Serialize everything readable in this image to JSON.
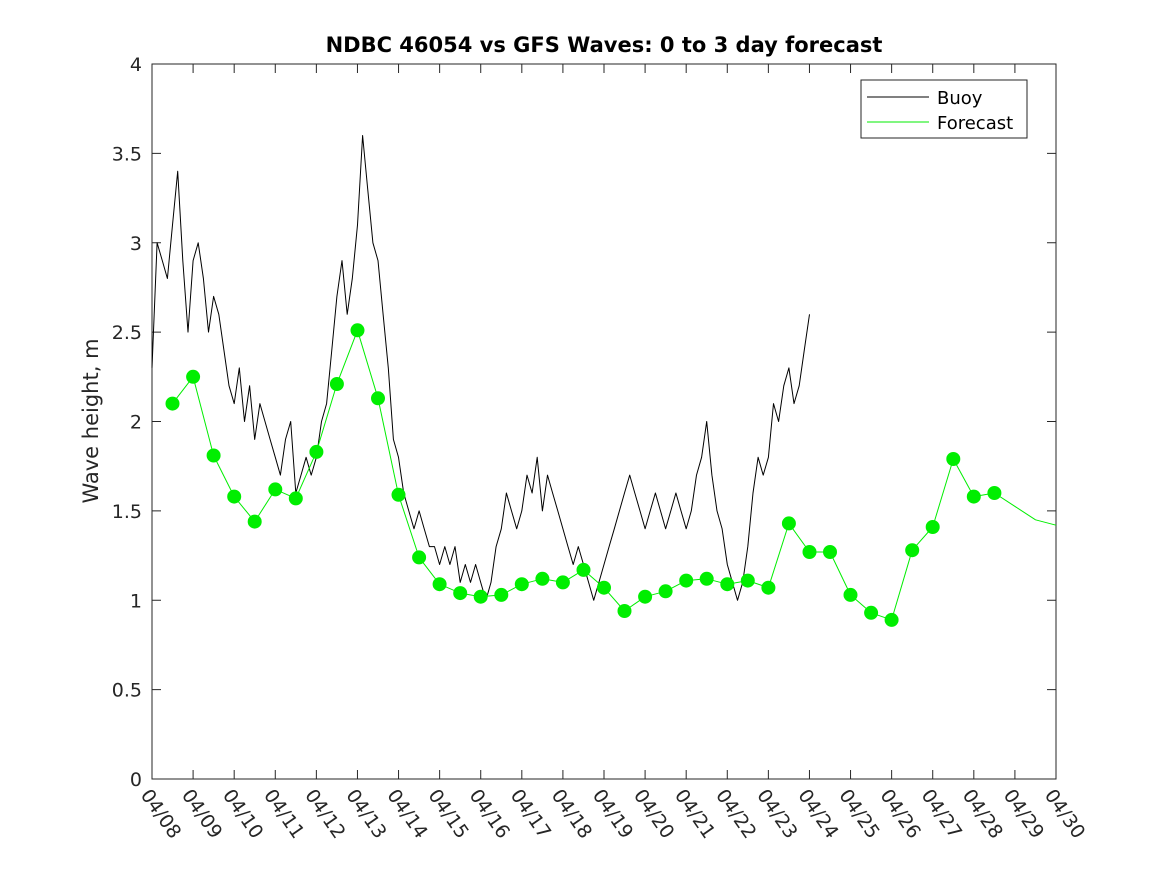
{
  "chart_data": {
    "type": "line",
    "title": "NDBC 46054 vs GFS Waves: 0 to 3 day forecast",
    "xlabel": "",
    "ylabel": "Wave height, m",
    "ylim": [
      0,
      4
    ],
    "yticks": [
      "0",
      "0.5",
      "1",
      "1.5",
      "2",
      "2.5",
      "3",
      "3.5",
      "4"
    ],
    "xlim": [
      "04/08",
      "04/30"
    ],
    "xticks": [
      "04/08",
      "04/09",
      "04/10",
      "04/11",
      "04/12",
      "04/13",
      "04/14",
      "04/15",
      "04/16",
      "04/17",
      "04/18",
      "04/19",
      "04/20",
      "04/21",
      "04/22",
      "04/23",
      "04/24",
      "04/25",
      "04/26",
      "04/27",
      "04/28",
      "04/29",
      "04/30"
    ],
    "legend_position": "top-right",
    "colors": {
      "buoy": "#000000",
      "forecast": "#00ee00",
      "axes": "#262626"
    },
    "series": [
      {
        "name": "Buoy",
        "style": "line",
        "color": "#000000",
        "points": [
          [
            "04/08 00:00",
            2.3
          ],
          [
            "04/08 03:00",
            3.0
          ],
          [
            "04/08 06:00",
            2.9
          ],
          [
            "04/08 09:00",
            2.8
          ],
          [
            "04/08 12:00",
            3.1
          ],
          [
            "04/08 15:00",
            3.4
          ],
          [
            "04/08 18:00",
            2.9
          ],
          [
            "04/08 21:00",
            2.5
          ],
          [
            "04/09 00:00",
            2.9
          ],
          [
            "04/09 03:00",
            3.0
          ],
          [
            "04/09 06:00",
            2.8
          ],
          [
            "04/09 09:00",
            2.5
          ],
          [
            "04/09 12:00",
            2.7
          ],
          [
            "04/09 15:00",
            2.6
          ],
          [
            "04/09 18:00",
            2.4
          ],
          [
            "04/09 21:00",
            2.2
          ],
          [
            "04/10 00:00",
            2.1
          ],
          [
            "04/10 03:00",
            2.3
          ],
          [
            "04/10 06:00",
            2.0
          ],
          [
            "04/10 09:00",
            2.2
          ],
          [
            "04/10 12:00",
            1.9
          ],
          [
            "04/10 15:00",
            2.1
          ],
          [
            "04/10 18:00",
            2.0
          ],
          [
            "04/10 21:00",
            1.9
          ],
          [
            "04/11 00:00",
            1.8
          ],
          [
            "04/11 03:00",
            1.7
          ],
          [
            "04/11 06:00",
            1.9
          ],
          [
            "04/11 09:00",
            2.0
          ],
          [
            "04/11 12:00",
            1.6
          ],
          [
            "04/11 15:00",
            1.7
          ],
          [
            "04/11 18:00",
            1.8
          ],
          [
            "04/11 21:00",
            1.7
          ],
          [
            "04/12 00:00",
            1.8
          ],
          [
            "04/12 03:00",
            2.0
          ],
          [
            "04/12 06:00",
            2.1
          ],
          [
            "04/12 09:00",
            2.4
          ],
          [
            "04/12 12:00",
            2.7
          ],
          [
            "04/12 15:00",
            2.9
          ],
          [
            "04/12 18:00",
            2.6
          ],
          [
            "04/12 21:00",
            2.8
          ],
          [
            "04/13 00:00",
            3.1
          ],
          [
            "04/13 03:00",
            3.6
          ],
          [
            "04/13 06:00",
            3.3
          ],
          [
            "04/13 09:00",
            3.0
          ],
          [
            "04/13 12:00",
            2.9
          ],
          [
            "04/13 15:00",
            2.6
          ],
          [
            "04/13 18:00",
            2.3
          ],
          [
            "04/13 21:00",
            1.9
          ],
          [
            "04/14 00:00",
            1.8
          ],
          [
            "04/14 03:00",
            1.6
          ],
          [
            "04/14 06:00",
            1.5
          ],
          [
            "04/14 09:00",
            1.4
          ],
          [
            "04/14 12:00",
            1.5
          ],
          [
            "04/14 15:00",
            1.4
          ],
          [
            "04/14 18:00",
            1.3
          ],
          [
            "04/14 21:00",
            1.3
          ],
          [
            "04/15 00:00",
            1.2
          ],
          [
            "04/15 03:00",
            1.3
          ],
          [
            "04/15 06:00",
            1.2
          ],
          [
            "04/15 09:00",
            1.3
          ],
          [
            "04/15 12:00",
            1.1
          ],
          [
            "04/15 15:00",
            1.2
          ],
          [
            "04/15 18:00",
            1.1
          ],
          [
            "04/15 21:00",
            1.2
          ],
          [
            "04/16 00:00",
            1.1
          ],
          [
            "04/16 03:00",
            1.0
          ],
          [
            "04/16 06:00",
            1.1
          ],
          [
            "04/16 09:00",
            1.3
          ],
          [
            "04/16 12:00",
            1.4
          ],
          [
            "04/16 15:00",
            1.6
          ],
          [
            "04/16 18:00",
            1.5
          ],
          [
            "04/16 21:00",
            1.4
          ],
          [
            "04/17 00:00",
            1.5
          ],
          [
            "04/17 03:00",
            1.7
          ],
          [
            "04/17 06:00",
            1.6
          ],
          [
            "04/17 09:00",
            1.8
          ],
          [
            "04/17 12:00",
            1.5
          ],
          [
            "04/17 15:00",
            1.7
          ],
          [
            "04/17 18:00",
            1.6
          ],
          [
            "04/17 21:00",
            1.5
          ],
          [
            "04/18 00:00",
            1.4
          ],
          [
            "04/18 03:00",
            1.3
          ],
          [
            "04/18 06:00",
            1.2
          ],
          [
            "04/18 09:00",
            1.3
          ],
          [
            "04/18 12:00",
            1.2
          ],
          [
            "04/18 15:00",
            1.1
          ],
          [
            "04/18 18:00",
            1.0
          ],
          [
            "04/18 21:00",
            1.1
          ],
          [
            "04/19 00:00",
            1.2
          ],
          [
            "04/19 03:00",
            1.3
          ],
          [
            "04/19 06:00",
            1.4
          ],
          [
            "04/19 09:00",
            1.5
          ],
          [
            "04/19 12:00",
            1.6
          ],
          [
            "04/19 15:00",
            1.7
          ],
          [
            "04/19 18:00",
            1.6
          ],
          [
            "04/19 21:00",
            1.5
          ],
          [
            "04/20 00:00",
            1.4
          ],
          [
            "04/20 03:00",
            1.5
          ],
          [
            "04/20 06:00",
            1.6
          ],
          [
            "04/20 09:00",
            1.5
          ],
          [
            "04/20 12:00",
            1.4
          ],
          [
            "04/20 15:00",
            1.5
          ],
          [
            "04/20 18:00",
            1.6
          ],
          [
            "04/20 21:00",
            1.5
          ],
          [
            "04/21 00:00",
            1.4
          ],
          [
            "04/21 03:00",
            1.5
          ],
          [
            "04/21 06:00",
            1.7
          ],
          [
            "04/21 09:00",
            1.8
          ],
          [
            "04/21 12:00",
            2.0
          ],
          [
            "04/21 15:00",
            1.7
          ],
          [
            "04/21 18:00",
            1.5
          ],
          [
            "04/21 21:00",
            1.4
          ],
          [
            "04/22 00:00",
            1.2
          ],
          [
            "04/22 03:00",
            1.1
          ],
          [
            "04/22 06:00",
            1.0
          ],
          [
            "04/22 09:00",
            1.1
          ],
          [
            "04/22 12:00",
            1.3
          ],
          [
            "04/22 15:00",
            1.6
          ],
          [
            "04/22 18:00",
            1.8
          ],
          [
            "04/22 21:00",
            1.7
          ],
          [
            "04/23 00:00",
            1.8
          ],
          [
            "04/23 03:00",
            2.1
          ],
          [
            "04/23 06:00",
            2.0
          ],
          [
            "04/23 09:00",
            2.2
          ],
          [
            "04/23 12:00",
            2.3
          ],
          [
            "04/23 15:00",
            2.1
          ],
          [
            "04/23 18:00",
            2.2
          ],
          [
            "04/23 21:00",
            2.4
          ],
          [
            "04/24 00:00",
            2.6
          ]
        ]
      },
      {
        "name": "Forecast",
        "style": "line",
        "color": "#00ee00",
        "points": [
          [
            "04/08 12:00",
            2.1
          ],
          [
            "04/09 00:00",
            2.25
          ],
          [
            "04/09 12:00",
            1.81
          ],
          [
            "04/10 00:00",
            1.58
          ],
          [
            "04/10 12:00",
            1.44
          ],
          [
            "04/11 00:00",
            1.62
          ],
          [
            "04/11 12:00",
            1.57
          ],
          [
            "04/12 00:00",
            1.83
          ],
          [
            "04/12 12:00",
            2.21
          ],
          [
            "04/13 00:00",
            2.51
          ],
          [
            "04/13 12:00",
            2.13
          ],
          [
            "04/14 00:00",
            1.59
          ],
          [
            "04/14 12:00",
            1.24
          ],
          [
            "04/15 00:00",
            1.09
          ],
          [
            "04/15 12:00",
            1.04
          ],
          [
            "04/16 00:00",
            1.02
          ],
          [
            "04/16 12:00",
            1.03
          ],
          [
            "04/17 00:00",
            1.09
          ],
          [
            "04/17 12:00",
            1.12
          ],
          [
            "04/18 00:00",
            1.1
          ],
          [
            "04/18 12:00",
            1.17
          ],
          [
            "04/19 00:00",
            1.07
          ],
          [
            "04/19 12:00",
            0.94
          ],
          [
            "04/20 00:00",
            1.02
          ],
          [
            "04/20 12:00",
            1.05
          ],
          [
            "04/21 00:00",
            1.11
          ],
          [
            "04/21 12:00",
            1.12
          ],
          [
            "04/22 00:00",
            1.09
          ],
          [
            "04/22 12:00",
            1.11
          ],
          [
            "04/23 00:00",
            1.07
          ],
          [
            "04/23 12:00",
            1.43
          ],
          [
            "04/24 00:00",
            1.27
          ],
          [
            "04/24 12:00",
            1.27
          ],
          [
            "04/25 00:00",
            1.03
          ],
          [
            "04/25 12:00",
            0.93
          ],
          [
            "04/26 00:00",
            0.89
          ],
          [
            "04/26 12:00",
            1.28
          ],
          [
            "04/27 00:00",
            1.41
          ],
          [
            "04/27 12:00",
            1.79
          ],
          [
            "04/28 00:00",
            1.58
          ],
          [
            "04/28 12:00",
            1.6
          ],
          [
            "04/29 12:00",
            1.45
          ],
          [
            "04/30 00:00",
            1.42
          ]
        ]
      },
      {
        "name": "",
        "style": "markers",
        "color": "#00ee00",
        "points": [
          [
            "04/08 12:00",
            2.1
          ],
          [
            "04/09 00:00",
            2.25
          ],
          [
            "04/09 12:00",
            1.81
          ],
          [
            "04/10 00:00",
            1.58
          ],
          [
            "04/10 12:00",
            1.44
          ],
          [
            "04/11 00:00",
            1.62
          ],
          [
            "04/11 12:00",
            1.57
          ],
          [
            "04/12 00:00",
            1.83
          ],
          [
            "04/12 12:00",
            2.21
          ],
          [
            "04/13 00:00",
            2.51
          ],
          [
            "04/13 12:00",
            2.13
          ],
          [
            "04/14 00:00",
            1.59
          ],
          [
            "04/14 12:00",
            1.24
          ],
          [
            "04/15 00:00",
            1.09
          ],
          [
            "04/15 12:00",
            1.04
          ],
          [
            "04/16 00:00",
            1.02
          ],
          [
            "04/16 12:00",
            1.03
          ],
          [
            "04/17 00:00",
            1.09
          ],
          [
            "04/17 12:00",
            1.12
          ],
          [
            "04/18 00:00",
            1.1
          ],
          [
            "04/18 12:00",
            1.17
          ],
          [
            "04/19 00:00",
            1.07
          ],
          [
            "04/19 12:00",
            0.94
          ],
          [
            "04/20 00:00",
            1.02
          ],
          [
            "04/20 12:00",
            1.05
          ],
          [
            "04/21 00:00",
            1.11
          ],
          [
            "04/21 12:00",
            1.12
          ],
          [
            "04/22 00:00",
            1.09
          ],
          [
            "04/22 12:00",
            1.11
          ],
          [
            "04/23 00:00",
            1.07
          ],
          [
            "04/23 12:00",
            1.43
          ],
          [
            "04/24 00:00",
            1.27
          ],
          [
            "04/24 12:00",
            1.27
          ],
          [
            "04/25 00:00",
            1.03
          ],
          [
            "04/25 12:00",
            0.93
          ],
          [
            "04/26 00:00",
            0.89
          ],
          [
            "04/26 12:00",
            1.28
          ],
          [
            "04/27 00:00",
            1.41
          ],
          [
            "04/27 12:00",
            1.79
          ],
          [
            "04/28 00:00",
            1.58
          ],
          [
            "04/28 12:00",
            1.6
          ]
        ]
      }
    ]
  }
}
